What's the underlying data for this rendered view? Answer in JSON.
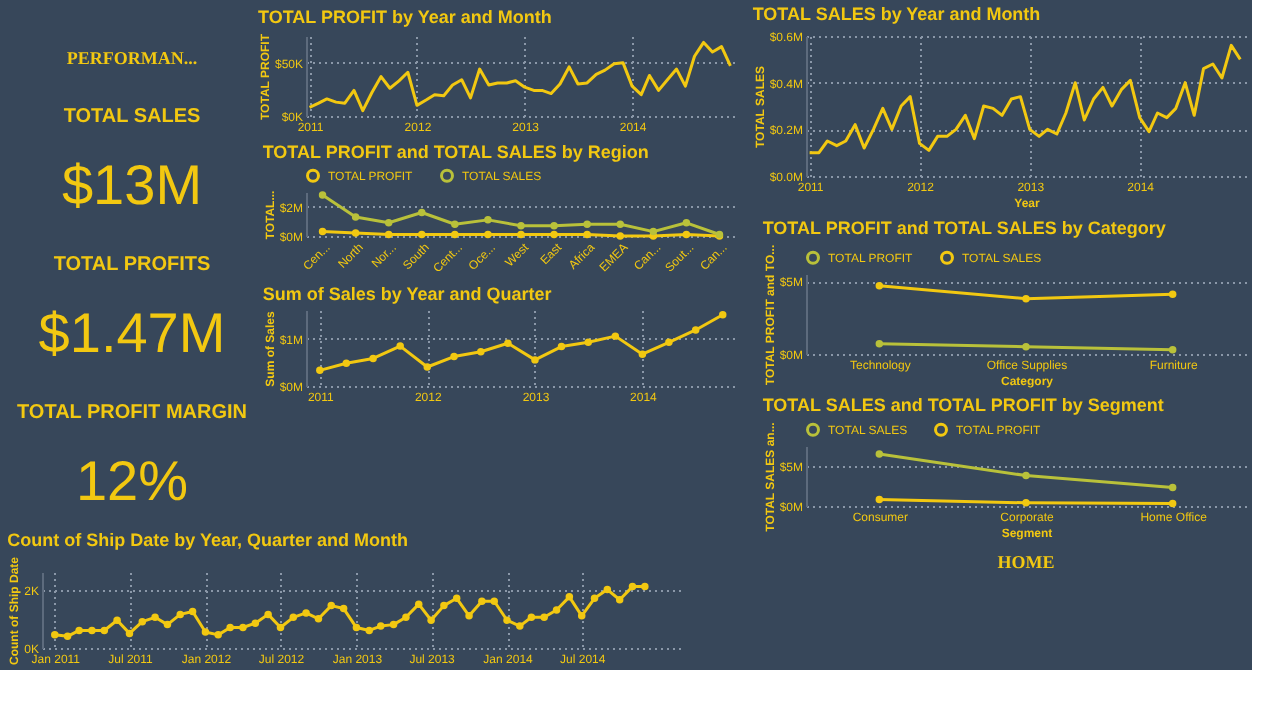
{
  "chart_data": [
    {
      "type": "other",
      "annotations": [
        "PERFORMAN..."
      ]
    },
    {
      "type": "other",
      "title": "TOTAL SALES",
      "annotations": [
        "$13M"
      ]
    },
    {
      "type": "other",
      "title": "TOTAL PROFITS",
      "annotations": [
        "$1.47M"
      ]
    },
    {
      "type": "other",
      "title": "TOTAL PROFIT MARGIN",
      "annotations": [
        "12%"
      ]
    },
    {
      "type": "line",
      "title": "TOTAL PROFIT by Year and Month",
      "ylabel": "TOTAL PROFIT",
      "color": "#f2c811",
      "marker": "none",
      "grid": true,
      "x": [
        "2011-01",
        "2011-02",
        "2011-03",
        "2011-04",
        "2011-05",
        "2011-06",
        "2011-07",
        "2011-08",
        "2011-09",
        "2011-10",
        "2011-11",
        "2011-12",
        "2012-01",
        "2012-02",
        "2012-03",
        "2012-04",
        "2012-05",
        "2012-06",
        "2012-07",
        "2012-08",
        "2012-09",
        "2012-10",
        "2012-11",
        "2012-12",
        "2013-01",
        "2013-02",
        "2013-03",
        "2013-04",
        "2013-05",
        "2013-06",
        "2013-07",
        "2013-08",
        "2013-09",
        "2013-10",
        "2013-11",
        "2013-12",
        "2014-01",
        "2014-02",
        "2014-03",
        "2014-04",
        "2014-05",
        "2014-06",
        "2014-07",
        "2014-08",
        "2014-09",
        "2014-10",
        "2014-11",
        "2014-12"
      ],
      "values": [
        8000,
        12000,
        16000,
        13000,
        12000,
        24000,
        5000,
        22000,
        37000,
        26000,
        33000,
        41000,
        10000,
        15000,
        20000,
        19000,
        29000,
        34000,
        17000,
        44000,
        29000,
        31000,
        31000,
        33000,
        27000,
        24000,
        24000,
        21000,
        30000,
        46000,
        30000,
        31000,
        39000,
        43000,
        49000,
        50000,
        28000,
        20000,
        38000,
        24000,
        34000,
        44000,
        28000,
        56000,
        69000,
        60000,
        65000,
        47000
      ],
      "xlim": [
        "2010-12-20",
        "2014-12-20"
      ],
      "xticks": [
        {
          "value": "2011",
          "label": "2011"
        },
        {
          "value": "2012",
          "label": "2012"
        },
        {
          "value": "2013",
          "label": "2013"
        },
        {
          "value": "2014",
          "label": "2014"
        }
      ],
      "ylim": [
        0,
        75000
      ],
      "yticks": [
        {
          "value": 0,
          "label": "$0K"
        },
        {
          "value": 50000,
          "label": "$50K"
        }
      ]
    },
    {
      "type": "line",
      "title": "TOTAL PROFIT and TOTAL SALES by Region",
      "ylabel": "TOTAL...",
      "marker": "circle",
      "grid": "y",
      "legend": "top left",
      "categories": [
        "Cen...",
        "North",
        "Nor...",
        "South",
        "Cent...",
        "Oce...",
        "West",
        "East",
        "Africa",
        "EMEA",
        "Can...",
        "Sout...",
        "Can..."
      ],
      "series": [
        {
          "name": "TOTAL PROFIT",
          "color": "#f2c811",
          "values": [
            300000,
            200000,
            100000,
            100000,
            100000,
            100000,
            100000,
            100000,
            100000,
            0,
            0,
            100000,
            0
          ]
        },
        {
          "name": "TOTAL SALES",
          "color": "#b9c13a",
          "values": [
            2800000,
            1300000,
            900000,
            1600000,
            800000,
            1100000,
            700000,
            700000,
            800000,
            800000,
            300000,
            900000,
            100000
          ]
        }
      ],
      "ylim": [
        0,
        3000000
      ],
      "yticks": [
        {
          "value": 0,
          "label": "$0M"
        },
        {
          "value": 2000000,
          "label": "$2M"
        }
      ]
    },
    {
      "type": "line",
      "title": "Sum of Sales by Year and Quarter",
      "ylabel": "Sum of Sales",
      "color": "#f2c811",
      "marker": "circle",
      "grid": true,
      "x": [
        "2011-01",
        "2011-04",
        "2011-07",
        "2011-10",
        "2012-01",
        "2012-04",
        "2012-07",
        "2012-10",
        "2013-01",
        "2013-04",
        "2013-07",
        "2013-10",
        "2014-01",
        "2014-04",
        "2014-07",
        "2014-10"
      ],
      "values": [
        330000,
        480000,
        580000,
        840000,
        400000,
        620000,
        720000,
        900000,
        550000,
        830000,
        920000,
        1050000,
        670000,
        920000,
        1180000,
        1500000
      ],
      "xlim": [
        "2010-11-15",
        "2014-11-15"
      ],
      "xticks": [
        {
          "value": "2011",
          "label": "2011"
        },
        {
          "value": "2012",
          "label": "2012"
        },
        {
          "value": "2013",
          "label": "2013"
        },
        {
          "value": "2014",
          "label": "2014"
        }
      ],
      "ylim": [
        0,
        1600000
      ],
      "yticks": [
        {
          "value": 0,
          "label": "$0M"
        },
        {
          "value": 1000000,
          "label": "$1M"
        }
      ]
    },
    {
      "type": "line",
      "title": "Count of Ship Date by Year, Quarter and Month",
      "ylabel": "Count of Ship Date",
      "color": "#f2c811",
      "marker": "circle",
      "grid": true,
      "x": [
        "2011-01",
        "2011-02",
        "2011-03",
        "2011-04",
        "2011-05",
        "2011-06",
        "2011-07",
        "2011-08",
        "2011-09",
        "2011-10",
        "2011-11",
        "2011-12",
        "2012-01",
        "2012-02",
        "2012-03",
        "2012-04",
        "2012-05",
        "2012-06",
        "2012-07",
        "2012-08",
        "2012-09",
        "2012-10",
        "2012-11",
        "2012-12",
        "2013-01",
        "2013-02",
        "2013-03",
        "2013-04",
        "2013-05",
        "2013-06",
        "2013-07",
        "2013-08",
        "2013-09",
        "2013-10",
        "2013-11",
        "2013-12",
        "2014-01",
        "2014-02",
        "2014-03",
        "2014-04",
        "2014-05",
        "2014-06",
        "2014-07",
        "2014-08",
        "2014-09",
        "2014-10",
        "2014-11",
        "2014-12"
      ],
      "values": [
        450,
        400,
        600,
        600,
        600,
        950,
        500,
        900,
        1050,
        800,
        1150,
        1250,
        550,
        450,
        700,
        700,
        850,
        1150,
        700,
        1050,
        1200,
        1000,
        1450,
        1350,
        700,
        600,
        750,
        800,
        1050,
        1500,
        950,
        1450,
        1700,
        1100,
        1600,
        1600,
        950,
        750,
        1050,
        1050,
        1300,
        1750,
        1100,
        1700,
        2000,
        1650,
        2100,
        2100
      ],
      "xlim": [
        "2010-12-01",
        "2015-03-01"
      ],
      "xticks": [
        {
          "value": "2011-01",
          "label": "Jan 2011"
        },
        {
          "value": "2011-07",
          "label": "Jul 2011"
        },
        {
          "value": "2012-01",
          "label": "Jan 2012"
        },
        {
          "value": "2012-07",
          "label": "Jul 2012"
        },
        {
          "value": "2013-01",
          "label": "Jan 2013"
        },
        {
          "value": "2013-07",
          "label": "Jul 2013"
        },
        {
          "value": "2014-01",
          "label": "Jan 2014"
        },
        {
          "value": "2014-07",
          "label": "Jul 2014"
        }
      ],
      "ylim": [
        0,
        2600
      ],
      "yticks": [
        {
          "value": 0,
          "label": "0K"
        },
        {
          "value": 2000,
          "label": "2K"
        }
      ]
    },
    {
      "type": "line",
      "title": "TOTAL SALES by Year and Month",
      "xlabel": "Year",
      "ylabel": "TOTAL SALES",
      "color": "#f2c811",
      "marker": "none",
      "grid": true,
      "x": [
        "2011-01",
        "2011-02",
        "2011-03",
        "2011-04",
        "2011-05",
        "2011-06",
        "2011-07",
        "2011-08",
        "2011-09",
        "2011-10",
        "2011-11",
        "2011-12",
        "2012-01",
        "2012-02",
        "2012-03",
        "2012-04",
        "2012-05",
        "2012-06",
        "2012-07",
        "2012-08",
        "2012-09",
        "2012-10",
        "2012-11",
        "2012-12",
        "2013-01",
        "2013-02",
        "2013-03",
        "2013-04",
        "2013-05",
        "2013-06",
        "2013-07",
        "2013-08",
        "2013-09",
        "2013-10",
        "2013-11",
        "2013-12",
        "2014-01",
        "2014-02",
        "2014-03",
        "2014-04",
        "2014-05",
        "2014-06",
        "2014-07",
        "2014-08",
        "2014-09",
        "2014-10",
        "2014-11",
        "2014-12"
      ],
      "values": [
        100000,
        100000,
        150000,
        130000,
        150000,
        220000,
        120000,
        200000,
        290000,
        200000,
        300000,
        340000,
        140000,
        110000,
        170000,
        170000,
        200000,
        260000,
        160000,
        300000,
        290000,
        260000,
        330000,
        340000,
        200000,
        170000,
        200000,
        180000,
        270000,
        400000,
        240000,
        330000,
        380000,
        300000,
        370000,
        410000,
        250000,
        190000,
        270000,
        250000,
        290000,
        400000,
        260000,
        460000,
        480000,
        420000,
        560000,
        500000
      ],
      "xlim": [
        "2010-12-20",
        "2014-12-20"
      ],
      "xticks": [
        {
          "value": "2011",
          "label": "2011"
        },
        {
          "value": "2012",
          "label": "2012"
        },
        {
          "value": "2013",
          "label": "2013"
        },
        {
          "value": "2014",
          "label": "2014"
        }
      ],
      "ylim": [
        0,
        600000
      ],
      "yticks": [
        {
          "value": 0,
          "label": "$0.0M"
        },
        {
          "value": 200000,
          "label": "$0.2M"
        },
        {
          "value": 400000,
          "label": "$0.4M"
        },
        {
          "value": 600000,
          "label": "$0.6M"
        }
      ]
    },
    {
      "type": "line",
      "title": "TOTAL PROFIT and TOTAL SALES by Category",
      "xlabel": "Category",
      "ylabel": "TOTAL PROFIT and TO...",
      "marker": "circle",
      "grid": "y",
      "legend": "top left",
      "categories": [
        "Technology",
        "Office Supplies",
        "Furniture"
      ],
      "series": [
        {
          "name": "TOTAL PROFIT",
          "color": "#b9c13a",
          "values": [
            700000,
            500000,
            300000
          ]
        },
        {
          "name": "TOTAL SALES",
          "color": "#f2c811",
          "values": [
            4700000,
            3800000,
            4100000
          ]
        }
      ],
      "ylim": [
        0,
        5500000
      ],
      "yticks": [
        {
          "value": 0,
          "label": "$0M"
        },
        {
          "value": 5000000,
          "label": "$5M"
        }
      ]
    },
    {
      "type": "line",
      "title": "TOTAL SALES and TOTAL PROFIT by Segment",
      "xlabel": "Segment",
      "ylabel": "TOTAL SALES an...",
      "marker": "circle",
      "grid": "y",
      "legend": "top left",
      "categories": [
        "Consumer",
        "Corporate",
        "Home Office"
      ],
      "series": [
        {
          "name": "TOTAL SALES",
          "color": "#b9c13a",
          "values": [
            6500000,
            3800000,
            2300000
          ]
        },
        {
          "name": "TOTAL PROFIT",
          "color": "#f2c811",
          "values": [
            800000,
            400000,
            300000
          ]
        }
      ],
      "ylim": [
        0,
        7500000
      ],
      "yticks": [
        {
          "value": 0,
          "label": "$0M"
        },
        {
          "value": 5000000,
          "label": "$5M"
        }
      ]
    },
    {
      "type": "other",
      "annotations": [
        "HOME"
      ]
    }
  ]
}
